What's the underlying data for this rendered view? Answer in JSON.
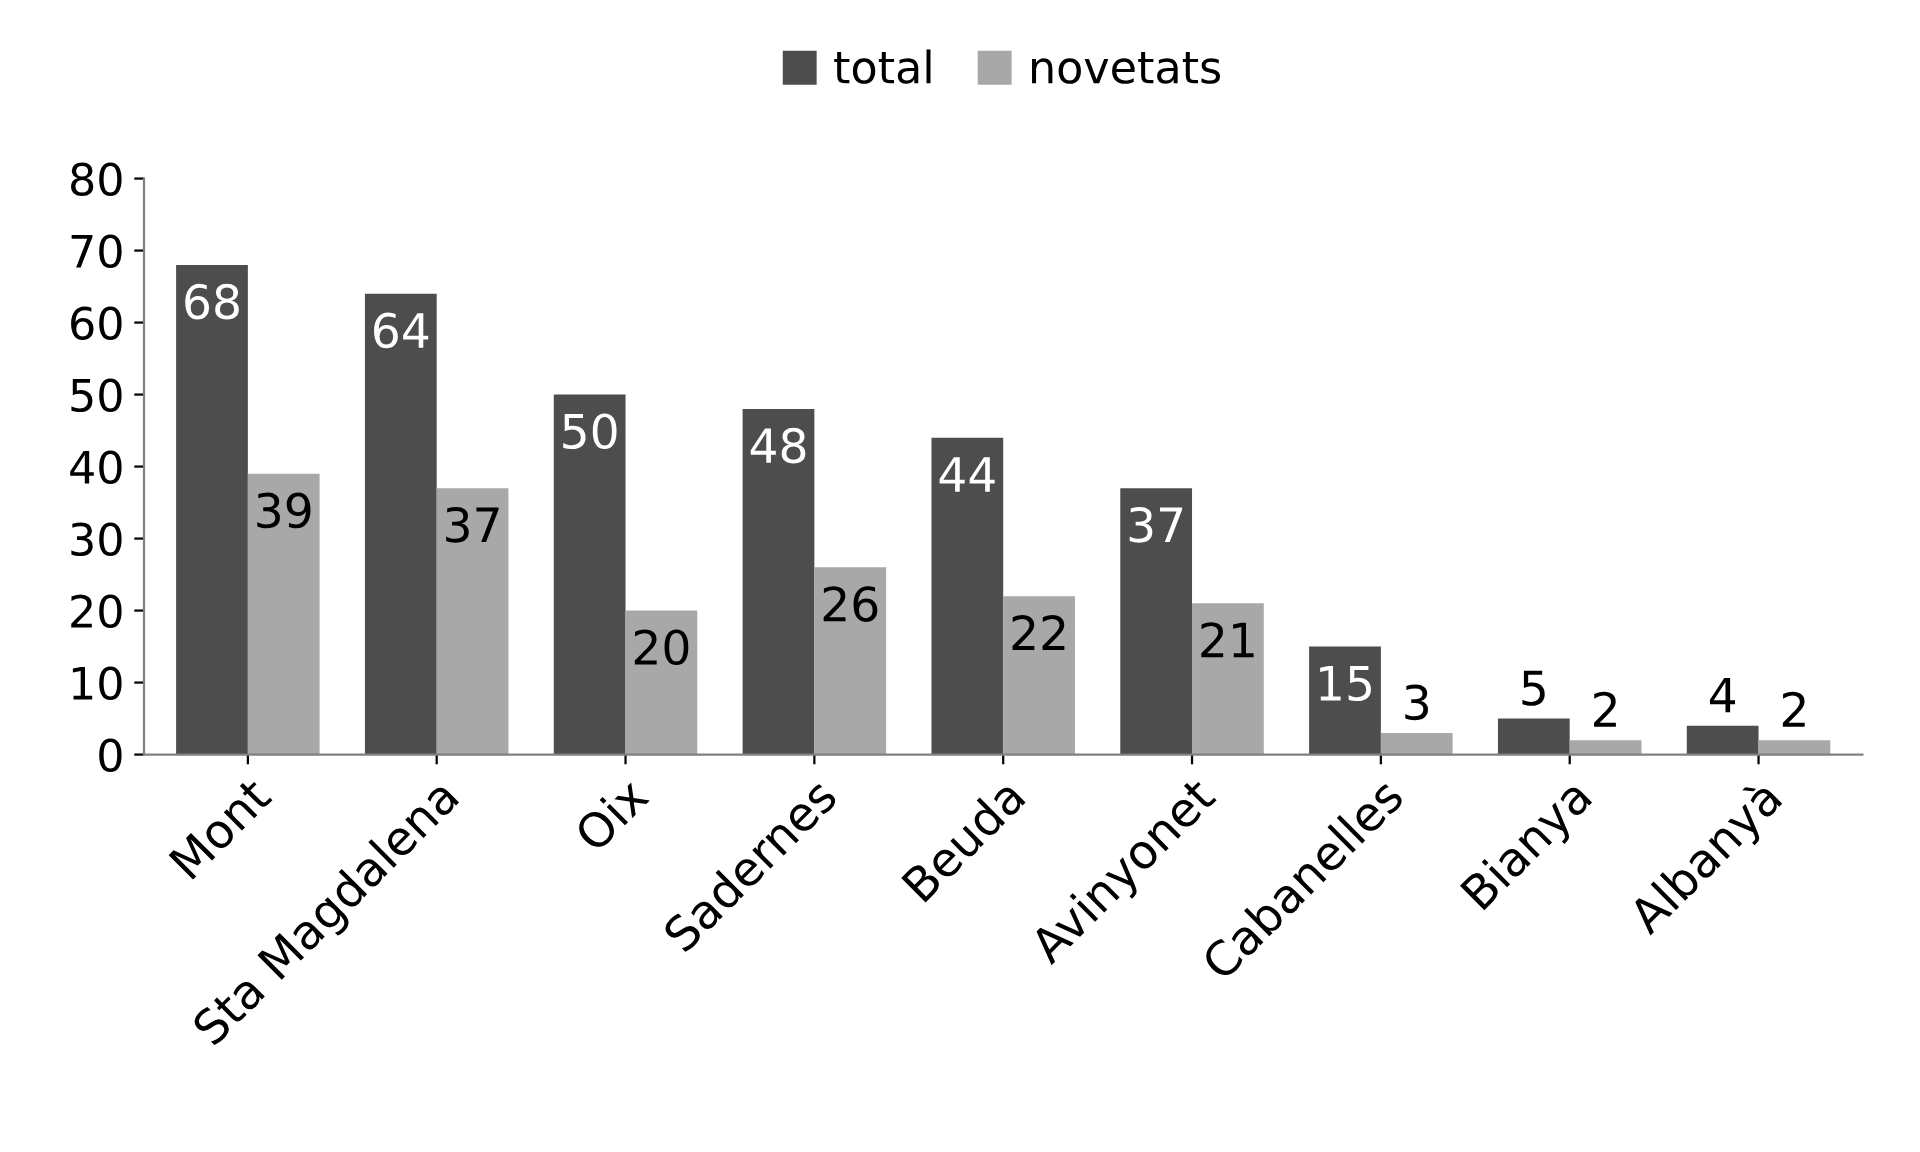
{
  "chart_data": {
    "type": "bar",
    "categories": [
      "Mont",
      "Sta Magdalena",
      "Oix",
      "Sadernes",
      "Beuda",
      "Avinyonet",
      "Cabanelles",
      "Bianya",
      "Albanyà"
    ],
    "series": [
      {
        "name": "total",
        "color": "#4d4d4d",
        "values": [
          68,
          64,
          50,
          48,
          44,
          37,
          15,
          5,
          4
        ]
      },
      {
        "name": "novetats",
        "color": "#a8a8a8",
        "values": [
          39,
          37,
          20,
          26,
          22,
          21,
          3,
          2,
          2
        ]
      }
    ],
    "ylim": [
      0,
      80
    ],
    "yticks": [
      0,
      10,
      20,
      30,
      40,
      50,
      60,
      70,
      80
    ],
    "data_labels": true,
    "legend": "top",
    "grid": false
  }
}
